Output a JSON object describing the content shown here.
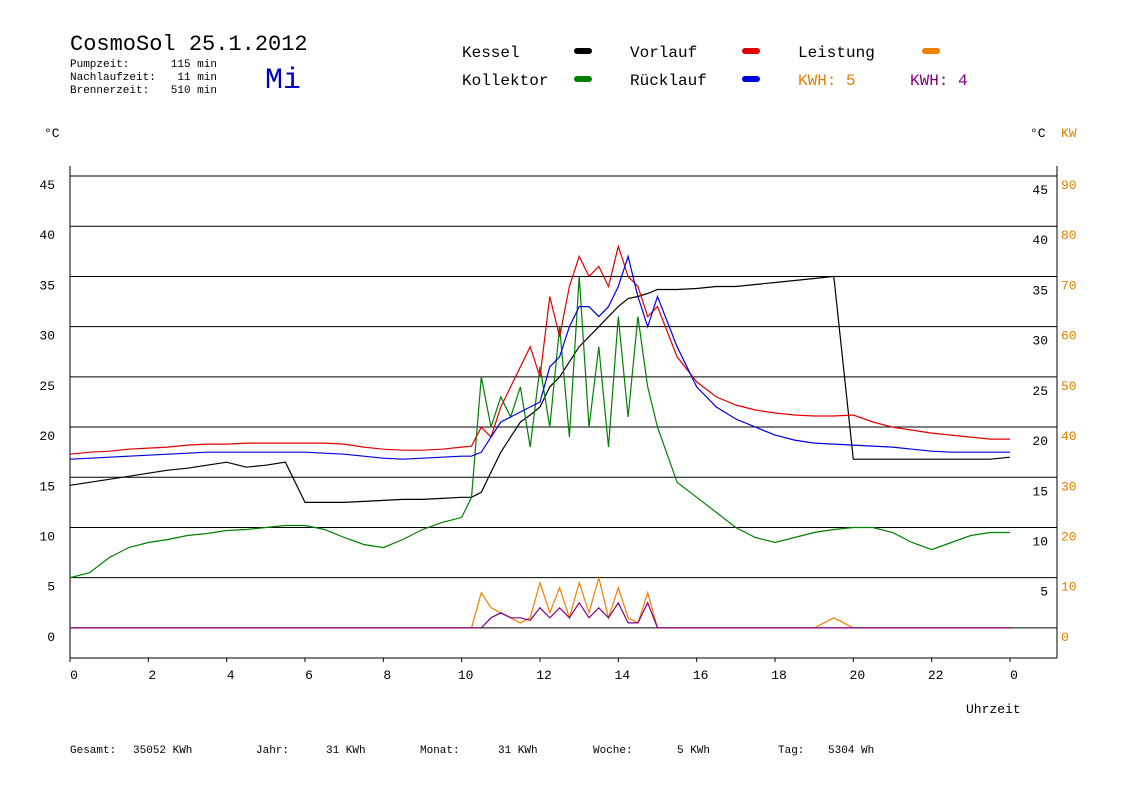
{
  "chart_data": {
    "type": "line",
    "title": "CosmoSol 25.1.2012",
    "weekday": "Mi",
    "info": [
      {
        "label": "Pumpzeit:",
        "value": "115 min"
      },
      {
        "label": "Nachlaufzeit:",
        "value": "11 min"
      },
      {
        "label": "Brennerzeit:",
        "value": "510 min"
      }
    ],
    "annotations": [
      "KWH: 5",
      "KWH: 4"
    ],
    "y_label": "°C",
    "y2_label": "°C",
    "y2_unit": "KW",
    "x_label": "Uhrzeit",
    "footer": [
      {
        "label": "Gesamt:",
        "value": "35052 KWh"
      },
      {
        "label": "Jahr:",
        "value": "31 KWh"
      },
      {
        "label": "Monat:",
        "value": "31 KWh"
      },
      {
        "label": "Woche:",
        "value": "5 KWh"
      },
      {
        "label": "Tag:",
        "value": "5304 Wh"
      }
    ],
    "xlim": [
      0,
      25.2
    ],
    "xticks": [
      0,
      2,
      4,
      6,
      8,
      10,
      12,
      14,
      16,
      18,
      20,
      22,
      {
        "value": 24,
        "label": "0"
      }
    ],
    "ylim": [
      -3,
      46
    ],
    "yticks": [
      0,
      5,
      10,
      15,
      20,
      25,
      30,
      35,
      40,
      45
    ],
    "yticks_right": [
      5,
      10,
      15,
      20,
      25,
      30,
      35,
      40,
      45
    ],
    "y2lim": [
      -6,
      92
    ],
    "y2ticks": [
      0,
      10,
      20,
      30,
      40,
      50,
      60,
      70,
      80,
      90
    ],
    "grid": true,
    "x": [
      0,
      0.5,
      1,
      1.5,
      2,
      2.5,
      3,
      3.5,
      4,
      4.5,
      5,
      5.5,
      6,
      6.5,
      7,
      7.5,
      8,
      8.5,
      9,
      9.5,
      10,
      10.25,
      10.5,
      10.75,
      11,
      11.25,
      11.5,
      11.75,
      12,
      12.25,
      12.5,
      12.75,
      13,
      13.25,
      13.5,
      13.75,
      14,
      14.25,
      14.5,
      14.75,
      15,
      15.5,
      16,
      16.5,
      17,
      17.5,
      18,
      18.5,
      19,
      19.5,
      20,
      20.5,
      21,
      21.5,
      22,
      22.5,
      23,
      23.5,
      24
    ],
    "series": [
      {
        "name": "Kessel",
        "color": "#000000",
        "values": [
          14.2,
          14.5,
          14.8,
          15.1,
          15.4,
          15.7,
          15.9,
          16.2,
          16.5,
          16,
          16.2,
          16.5,
          12.5,
          12.5,
          12.5,
          12.6,
          12.7,
          12.8,
          12.8,
          12.9,
          13,
          13,
          13.5,
          15.5,
          17.5,
          19,
          20.5,
          21.2,
          22,
          24,
          25,
          26.5,
          28,
          29,
          30,
          31,
          32,
          32.8,
          33,
          33.3,
          33.7,
          33.7,
          33.8,
          34,
          34,
          34.2,
          34.4,
          34.6,
          34.8,
          35,
          16.8,
          16.8,
          16.8,
          16.8,
          16.8,
          16.8,
          16.8,
          16.8,
          17
        ]
      },
      {
        "name": "Kollektor",
        "color": "#008000",
        "values": [
          5,
          5.5,
          7,
          8,
          8.5,
          8.8,
          9.2,
          9.4,
          9.7,
          9.8,
          10,
          10.2,
          10.2,
          9.8,
          9,
          8.3,
          8,
          8.8,
          9.8,
          10.5,
          11,
          13,
          25,
          20,
          23,
          21,
          24,
          18,
          26,
          20,
          30,
          19,
          35,
          20,
          28,
          18,
          31,
          21,
          31,
          24,
          20,
          14.5,
          13,
          11.5,
          10,
          9,
          8.5,
          9,
          9.5,
          9.8,
          10,
          10,
          9.5,
          8.5,
          7.8,
          8.5,
          9.2,
          9.5,
          9.5
        ]
      },
      {
        "name": "Vorlauf",
        "color": "#e00000",
        "values": [
          17.3,
          17.5,
          17.6,
          17.8,
          17.9,
          18,
          18.2,
          18.3,
          18.3,
          18.4,
          18.4,
          18.4,
          18.4,
          18.4,
          18.3,
          18,
          17.8,
          17.7,
          17.7,
          17.8,
          18,
          18.1,
          20,
          19,
          22,
          24,
          26,
          28,
          25,
          33,
          29,
          34,
          37,
          35,
          36,
          34,
          38,
          35,
          34,
          31,
          32,
          27,
          24.5,
          23,
          22.2,
          21.7,
          21.4,
          21.2,
          21.1,
          21.1,
          21.2,
          20.5,
          20,
          19.7,
          19.4,
          19.2,
          19,
          18.8,
          18.8
        ]
      },
      {
        "name": "Rücklauf",
        "color": "#0000e0",
        "values": [
          16.8,
          16.9,
          17,
          17.1,
          17.2,
          17.3,
          17.4,
          17.5,
          17.5,
          17.5,
          17.5,
          17.5,
          17.5,
          17.4,
          17.3,
          17.1,
          16.9,
          16.8,
          16.9,
          17,
          17.1,
          17.1,
          17.5,
          19,
          20.5,
          21,
          21.5,
          22,
          22.5,
          26,
          27,
          30,
          32,
          32,
          31,
          32,
          34,
          37,
          33,
          30,
          33,
          28,
          24,
          22,
          20.8,
          20,
          19.2,
          18.7,
          18.4,
          18.3,
          18.2,
          18.1,
          18,
          17.8,
          17.6,
          17.5,
          17.5,
          17.5,
          17.5
        ]
      },
      {
        "name": "Leistung",
        "color": "#f08000",
        "axis": "y2",
        "values": [
          0,
          0,
          0,
          0,
          0,
          0,
          0,
          0,
          0,
          0,
          0,
          0,
          0,
          0,
          0,
          0,
          0,
          0,
          0,
          0,
          0,
          0,
          7,
          4,
          3,
          2,
          1,
          2,
          9,
          3,
          8,
          2,
          9,
          3,
          10,
          2,
          8,
          2,
          1,
          7,
          0,
          0,
          0,
          0,
          0,
          0,
          0,
          0,
          0,
          2,
          0,
          0,
          0,
          0,
          0,
          0,
          0,
          0,
          0
        ]
      },
      {
        "color": "#800080",
        "axis": "y2",
        "values": [
          0,
          0,
          0,
          0,
          0,
          0,
          0,
          0,
          0,
          0,
          0,
          0,
          0,
          0,
          0,
          0,
          0,
          0,
          0,
          0,
          0,
          0,
          0,
          2,
          3,
          2,
          2,
          1.5,
          4,
          2,
          4,
          2,
          5,
          2,
          4,
          2,
          5,
          1,
          1,
          5,
          0,
          0,
          0,
          0,
          0,
          0,
          0,
          0,
          0,
          0,
          0,
          0,
          0,
          0,
          0,
          0,
          0,
          0,
          0
        ]
      }
    ]
  }
}
